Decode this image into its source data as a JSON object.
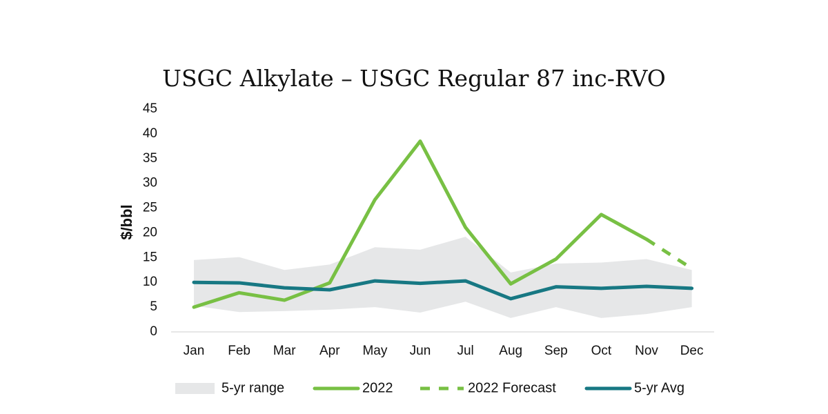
{
  "chart_data": {
    "type": "line",
    "title": "USGC Alkylate – USGC Regular 87 inc-RVO",
    "xlabel": "",
    "ylabel": "$/bbl",
    "categories": [
      "Jan",
      "Feb",
      "Mar",
      "Apr",
      "May",
      "Jun",
      "Jul",
      "Aug",
      "Sep",
      "Oct",
      "Nov",
      "Dec"
    ],
    "ylim": [
      0,
      45
    ],
    "yticks": [
      0,
      5,
      10,
      15,
      20,
      25,
      30,
      35,
      40,
      45
    ],
    "grid": false,
    "legend_position": "bottom",
    "range": {
      "name": "5-yr range",
      "low": [
        5.3,
        4.0,
        4.2,
        4.5,
        5.0,
        3.9,
        6.1,
        2.8,
        5.0,
        2.8,
        3.6,
        5.0
      ],
      "high": [
        14.5,
        15.1,
        12.5,
        13.6,
        17.1,
        16.6,
        19.2,
        12.0,
        13.8,
        14.0,
        14.7,
        12.5
      ]
    },
    "series": [
      {
        "name": "2022",
        "style": "solid",
        "values": [
          5.0,
          7.9,
          6.4,
          9.9,
          26.7,
          38.5,
          21.1,
          9.7,
          14.7,
          23.7,
          18.7,
          null
        ]
      },
      {
        "name": "2022 Forecast",
        "style": "dashed",
        "values": [
          null,
          null,
          null,
          null,
          null,
          null,
          null,
          null,
          null,
          null,
          18.7,
          12.8
        ]
      },
      {
        "name": "5-yr Avg",
        "style": "solid",
        "values": [
          10.0,
          9.9,
          8.9,
          8.5,
          10.3,
          9.8,
          10.3,
          6.7,
          9.1,
          8.8,
          9.2,
          8.8
        ]
      }
    ],
    "colors": {
      "range": "#e6e7e8",
      "line2022": "#78c044",
      "avg": "#177883",
      "axis": "#cccccc"
    }
  }
}
